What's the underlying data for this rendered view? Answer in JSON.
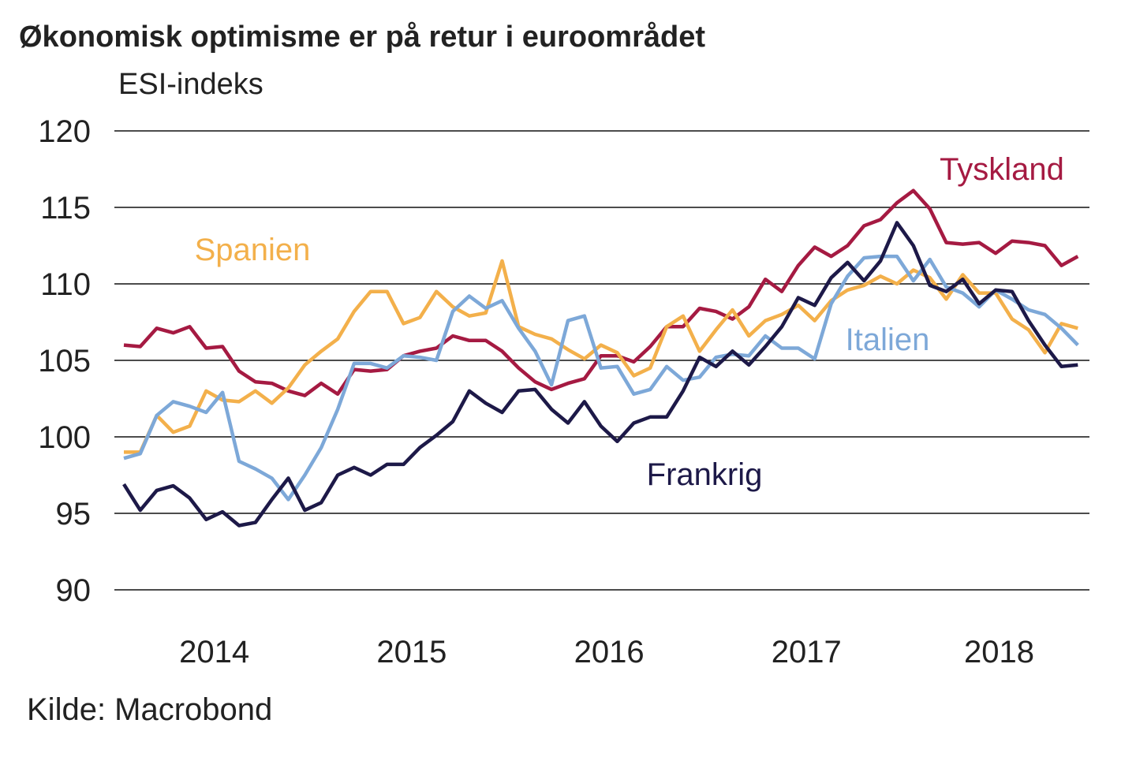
{
  "chart_data": {
    "type": "line",
    "title": "Økonomisk optimisme er på retur i euroområdet",
    "ylabel": "ESI-indeks",
    "xlabel": "",
    "source": "Kilde: Macrobond",
    "ylim": [
      90,
      120
    ],
    "yticks": [
      90,
      95,
      100,
      105,
      110,
      115,
      120
    ],
    "xticks": [
      "2014",
      "2015",
      "2016",
      "2017",
      "2018"
    ],
    "grid": "horizontal",
    "x": [
      "2014-01",
      "2014-02",
      "2014-03",
      "2014-04",
      "2014-05",
      "2014-06",
      "2014-07",
      "2014-08",
      "2014-09",
      "2014-10",
      "2014-11",
      "2014-12",
      "2015-01",
      "2015-02",
      "2015-03",
      "2015-04",
      "2015-05",
      "2015-06",
      "2015-07",
      "2015-08",
      "2015-09",
      "2015-10",
      "2015-11",
      "2015-12",
      "2016-01",
      "2016-02",
      "2016-03",
      "2016-04",
      "2016-05",
      "2016-06",
      "2016-07",
      "2016-08",
      "2016-09",
      "2016-10",
      "2016-11",
      "2016-12",
      "2017-01",
      "2017-02",
      "2017-03",
      "2017-04",
      "2017-05",
      "2017-06",
      "2017-07",
      "2017-08",
      "2017-09",
      "2017-10",
      "2017-11",
      "2017-12",
      "2018-01",
      "2018-02",
      "2018-03",
      "2018-04",
      "2018-05",
      "2018-06",
      "2018-07",
      "2018-08",
      "2018-09",
      "2018-10",
      "2018-11"
    ],
    "series": [
      {
        "name": "Tyskland",
        "color": "#A51A42",
        "values": [
          106.0,
          105.9,
          107.1,
          106.8,
          107.2,
          105.8,
          105.9,
          104.3,
          103.6,
          103.5,
          103.0,
          102.7,
          103.5,
          102.8,
          104.4,
          104.3,
          104.4,
          105.3,
          105.6,
          105.8,
          106.6,
          106.3,
          106.3,
          105.6,
          104.5,
          103.6,
          103.1,
          103.5,
          103.8,
          105.3,
          105.3,
          104.9,
          105.9,
          107.2,
          107.2,
          108.4,
          108.2,
          107.7,
          108.5,
          110.3,
          109.5,
          111.2,
          112.4,
          111.8,
          112.5,
          113.8,
          114.2,
          115.3,
          116.1,
          114.9,
          112.7,
          112.6,
          112.7,
          112.0,
          112.8,
          112.7,
          112.5,
          111.2,
          111.8
        ]
      },
      {
        "name": "Spanien",
        "color": "#F3B04B",
        "values": [
          99.0,
          99.0,
          101.4,
          100.3,
          100.7,
          103.0,
          102.4,
          102.3,
          103.0,
          102.2,
          103.2,
          104.7,
          105.6,
          106.4,
          108.2,
          109.5,
          109.5,
          107.4,
          107.8,
          109.5,
          108.5,
          107.9,
          108.1,
          111.5,
          107.2,
          106.7,
          106.4,
          105.7,
          105.1,
          106.0,
          105.5,
          104.0,
          104.5,
          107.2,
          107.9,
          105.6,
          107.0,
          108.3,
          106.6,
          107.6,
          108.0,
          108.6,
          107.6,
          108.9,
          109.6,
          109.9,
          110.5,
          110.0,
          110.9,
          110.4,
          109.0,
          110.6,
          109.4,
          109.4,
          107.7,
          107.0,
          105.5,
          107.4,
          107.1
        ]
      },
      {
        "name": "Italien",
        "color": "#7DA8D8",
        "values": [
          98.6,
          98.9,
          101.4,
          102.3,
          102.0,
          101.6,
          102.9,
          98.4,
          97.9,
          97.3,
          95.9,
          97.5,
          99.3,
          101.8,
          104.8,
          104.8,
          104.5,
          105.3,
          105.2,
          105.0,
          108.2,
          109.2,
          108.4,
          108.9,
          107.1,
          105.6,
          103.4,
          107.6,
          107.9,
          104.5,
          104.6,
          102.8,
          103.1,
          104.6,
          103.7,
          103.9,
          105.2,
          105.4,
          105.3,
          106.6,
          105.8,
          105.8,
          105.1,
          108.7,
          110.5,
          111.7,
          111.8,
          111.8,
          110.2,
          111.6,
          109.8,
          109.4,
          108.5,
          109.6,
          109.0,
          108.3,
          108.0,
          107.1,
          106.0
        ]
      },
      {
        "name": "Frankrig",
        "color": "#1D1948",
        "values": [
          96.9,
          95.2,
          96.5,
          96.8,
          96.0,
          94.6,
          95.1,
          94.2,
          94.4,
          95.9,
          97.3,
          95.2,
          95.7,
          97.5,
          98.0,
          97.5,
          98.2,
          98.2,
          99.3,
          100.1,
          101.0,
          103.0,
          102.2,
          101.6,
          103.0,
          103.1,
          101.8,
          100.9,
          102.3,
          100.7,
          99.7,
          100.9,
          101.3,
          101.3,
          103.0,
          105.2,
          104.6,
          105.6,
          104.7,
          105.9,
          107.2,
          109.1,
          108.6,
          110.4,
          111.4,
          110.2,
          111.5,
          114.0,
          112.5,
          109.9,
          109.5,
          110.3,
          108.7,
          109.6,
          109.5,
          107.6,
          106.0,
          104.6,
          104.7
        ]
      }
    ]
  }
}
